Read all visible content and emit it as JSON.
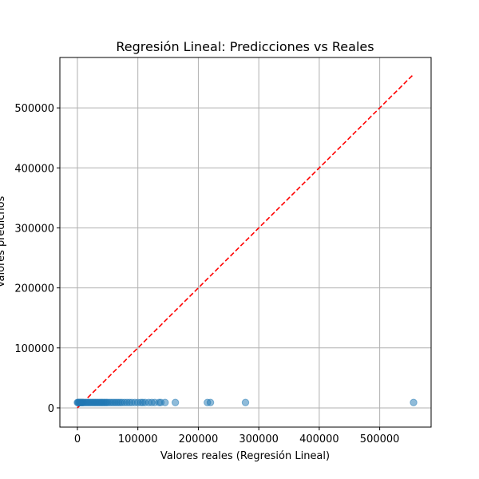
{
  "chart_data": {
    "type": "scatter",
    "title": "Regresión Lineal: Predicciones vs Reales",
    "xlabel": "Valores reales (Regresión Lineal)",
    "ylabel": "Valores predichos",
    "xlim": [
      -29000,
      585000
    ],
    "ylim": [
      -32000,
      584000
    ],
    "xticks": [
      0,
      100000,
      200000,
      300000,
      400000,
      500000
    ],
    "xtick_labels": [
      "0",
      "100000",
      "200000",
      "300000",
      "400000",
      "500000"
    ],
    "yticks": [
      0,
      100000,
      200000,
      300000,
      400000,
      500000
    ],
    "ytick_labels": [
      "0",
      "100000",
      "200000",
      "300000",
      "400000",
      "500000"
    ],
    "grid": true,
    "point_color": "#1f77b4",
    "point_alpha": 0.5,
    "reference_line": {
      "x": [
        0,
        555000
      ],
      "y": [
        0,
        555000
      ],
      "color": "#ff0000",
      "style": "dashed"
    },
    "series": [
      {
        "x": [
          0,
          1000,
          2000,
          3000,
          4000,
          5000,
          6000,
          7000,
          8000,
          9000,
          10000,
          12000,
          14000,
          16000,
          18000,
          20000,
          22000,
          24000,
          26000,
          28000,
          30000,
          32000,
          34000,
          36000,
          38000,
          40000,
          42000,
          44000,
          46000,
          48000,
          50000,
          53000,
          56000,
          59000,
          62000,
          65000,
          68000,
          71000,
          74000,
          78000,
          82000,
          86000,
          90000,
          95000,
          100000,
          105000,
          108000,
          112000,
          118000,
          123000,
          128000,
          135000,
          138000,
          145000,
          162000,
          215000,
          220000,
          278000,
          556000
        ],
        "y": [
          9000,
          9000,
          9000,
          9000,
          9000,
          9000,
          9000,
          9000,
          9000,
          9000,
          9000,
          9000,
          9000,
          9000,
          9000,
          9000,
          9000,
          9000,
          9000,
          9000,
          9000,
          9000,
          9000,
          9000,
          9000,
          9000,
          9000,
          9000,
          9000,
          9000,
          9000,
          9000,
          9000,
          9000,
          9000,
          9000,
          9000,
          9000,
          9000,
          9000,
          9000,
          9000,
          9000,
          9000,
          9000,
          9000,
          9000,
          9000,
          9000,
          9000,
          9000,
          9000,
          9000,
          9000,
          9000,
          9000,
          9000,
          9000,
          9000
        ]
      }
    ]
  }
}
